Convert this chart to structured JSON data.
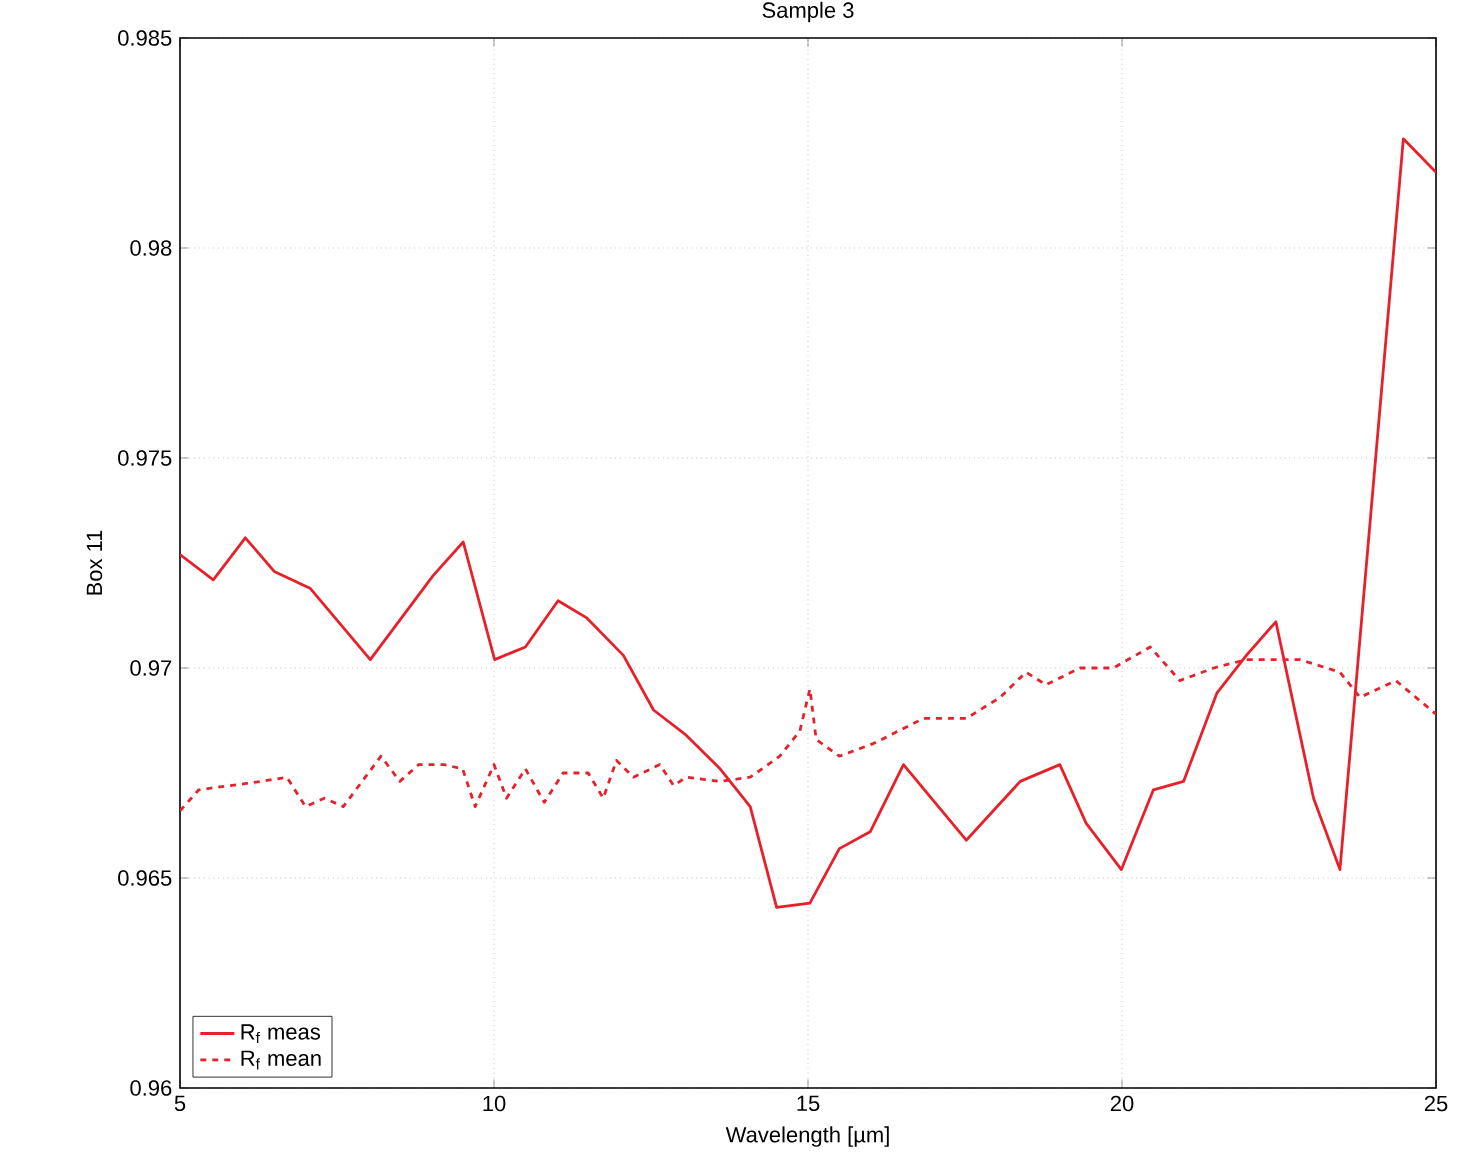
{
  "chart_data": {
    "type": "line",
    "title": "Sample 3",
    "xlabel": "Wavelength [µm]",
    "ylabel": "Box 11",
    "xlim": [
      5,
      25
    ],
    "xticks": [
      5,
      10,
      15,
      20,
      25
    ],
    "ylim": [
      0.96,
      0.985
    ],
    "yticks": [
      0.96,
      0.965,
      0.97,
      0.975,
      0.98,
      0.985
    ],
    "grid": true,
    "legend": "bottom left",
    "marker": "none",
    "series": [
      {
        "name": "R$_{f}$ meas",
        "color": "#e8202a",
        "line_style": "solid",
        "x": [
          5,
          5.53,
          6.04,
          6.5,
          7.07,
          8.03,
          9.03,
          9.51,
          10.01,
          10.5,
          11.02,
          11.47,
          12.06,
          12.54,
          13.06,
          13.6,
          14.08,
          14.5,
          15.03,
          15.5,
          15.99,
          16.52,
          17.52,
          18.38,
          19.01,
          19.43,
          19.99,
          20.5,
          20.98,
          21.51,
          21.98,
          22.45,
          23.05,
          23.47,
          24.48,
          25
        ],
        "values": [
          0.9727,
          0.9721,
          0.9731,
          0.9723,
          0.9719,
          0.9702,
          0.9722,
          0.973,
          0.9702,
          0.9705,
          0.9716,
          0.9712,
          0.9703,
          0.969,
          0.9684,
          0.9676,
          0.9667,
          0.9643,
          0.9644,
          0.9657,
          0.9661,
          0.9677,
          0.9659,
          0.9673,
          0.9677,
          0.9663,
          0.9652,
          0.9671,
          0.9673,
          0.9694,
          0.9703,
          0.9711,
          0.9669,
          0.9652,
          0.9826,
          0.9818
        ]
      },
      {
        "name": "R$_{f}$ mean",
        "color": "#e8202a",
        "line_style": "dashed",
        "x": [
          5,
          5.3,
          5.8,
          6.3,
          6.7,
          7.0,
          7.3,
          7.6,
          8.0,
          8.2,
          8.5,
          8.8,
          9.2,
          9.5,
          9.7,
          10.0,
          10.2,
          10.5,
          10.8,
          11.1,
          11.5,
          11.74,
          11.95,
          12.22,
          12.64,
          12.86,
          13.06,
          13.6,
          14.08,
          14.55,
          14.87,
          15.03,
          15.13,
          15.5,
          16.04,
          16.84,
          17.52,
          18.06,
          18.47,
          18.79,
          19.33,
          19.86,
          20.45,
          20.92,
          21.46,
          21.98,
          22.83,
          23.47,
          23.79,
          24.36,
          25
        ],
        "values": [
          0.9666,
          0.9671,
          0.9672,
          0.9673,
          0.9674,
          0.9667,
          0.9669,
          0.9667,
          0.9675,
          0.9679,
          0.9673,
          0.9677,
          0.9677,
          0.9676,
          0.9667,
          0.9677,
          0.9669,
          0.9676,
          0.9668,
          0.9675,
          0.9675,
          0.9669,
          0.9678,
          0.9674,
          0.9677,
          0.9672,
          0.9674,
          0.9673,
          0.9674,
          0.9679,
          0.9685,
          0.9695,
          0.9683,
          0.9679,
          0.9682,
          0.9688,
          0.9688,
          0.9693,
          0.9699,
          0.9696,
          0.97,
          0.97,
          0.9705,
          0.9697,
          0.97,
          0.9702,
          0.9702,
          0.9699,
          0.9693,
          0.9697,
          0.9689
        ]
      }
    ]
  }
}
